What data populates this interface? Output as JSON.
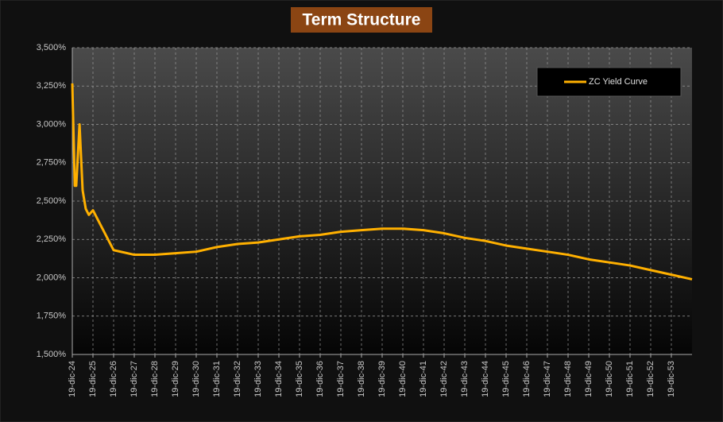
{
  "chart_data": {
    "type": "line",
    "title": "Term Structure",
    "x": [
      0,
      0.12,
      0.19,
      0.35,
      0.5,
      0.65,
      0.8,
      1,
      2,
      3,
      4,
      5,
      6,
      7,
      8,
      9,
      10,
      11,
      12,
      13,
      14,
      15,
      16,
      17,
      18,
      19,
      20,
      21,
      22,
      23,
      24,
      25,
      26,
      27,
      28,
      29,
      30
    ],
    "series": [
      {
        "name": "ZC Yield Curve",
        "color": "#ffb000",
        "values": [
          3.267,
          2.6,
          2.6,
          3.0,
          2.57,
          2.45,
          2.41,
          2.44,
          2.18,
          2.15,
          2.15,
          2.16,
          2.17,
          2.2,
          2.22,
          2.23,
          2.25,
          2.27,
          2.28,
          2.3,
          2.31,
          2.32,
          2.32,
          2.31,
          2.29,
          2.26,
          2.24,
          2.21,
          2.19,
          2.17,
          2.15,
          2.12,
          2.1,
          2.08,
          2.05,
          2.02,
          1.99
        ]
      }
    ],
    "xlim": [
      0,
      30
    ],
    "xticks": [
      {
        "value": 0,
        "label": "19-dic-24"
      },
      {
        "value": 1,
        "label": "19-dic-25"
      },
      {
        "value": 2,
        "label": "19-dic-26"
      },
      {
        "value": 3,
        "label": "19-dic-27"
      },
      {
        "value": 4,
        "label": "19-dic-28"
      },
      {
        "value": 5,
        "label": "19-dic-29"
      },
      {
        "value": 6,
        "label": "19-dic-30"
      },
      {
        "value": 7,
        "label": "19-dic-31"
      },
      {
        "value": 8,
        "label": "19-dic-32"
      },
      {
        "value": 9,
        "label": "19-dic-33"
      },
      {
        "value": 10,
        "label": "19-dic-34"
      },
      {
        "value": 11,
        "label": "19-dic-35"
      },
      {
        "value": 12,
        "label": "19-dic-36"
      },
      {
        "value": 13,
        "label": "19-dic-37"
      },
      {
        "value": 14,
        "label": "19-dic-38"
      },
      {
        "value": 15,
        "label": "19-dic-39"
      },
      {
        "value": 16,
        "label": "19-dic-40"
      },
      {
        "value": 17,
        "label": "19-dic-41"
      },
      {
        "value": 18,
        "label": "19-dic-42"
      },
      {
        "value": 19,
        "label": "19-dic-43"
      },
      {
        "value": 20,
        "label": "19-dic-44"
      },
      {
        "value": 21,
        "label": "19-dic-45"
      },
      {
        "value": 22,
        "label": "19-dic-46"
      },
      {
        "value": 23,
        "label": "19-dic-47"
      },
      {
        "value": 24,
        "label": "19-dic-48"
      },
      {
        "value": 25,
        "label": "19-dic-49"
      },
      {
        "value": 26,
        "label": "19-dic-50"
      },
      {
        "value": 27,
        "label": "19-dic-51"
      },
      {
        "value": 28,
        "label": "19-dic-52"
      },
      {
        "value": 29,
        "label": "19-dic-53"
      }
    ],
    "ylim": [
      1.5,
      3.5
    ],
    "yticks": [
      {
        "value": 1.5,
        "label": "1,500%"
      },
      {
        "value": 1.75,
        "label": "1,750%"
      },
      {
        "value": 2,
        "label": "2,000%"
      },
      {
        "value": 2.25,
        "label": "2,250%"
      },
      {
        "value": 2.5,
        "label": "2,500%"
      },
      {
        "value": 2.75,
        "label": "2,750%"
      },
      {
        "value": 3,
        "label": "3,000%"
      },
      {
        "value": 3.25,
        "label": "3,250%"
      },
      {
        "value": 3.5,
        "label": "3,500%"
      }
    ],
    "grid": true,
    "legend": "upper right"
  }
}
